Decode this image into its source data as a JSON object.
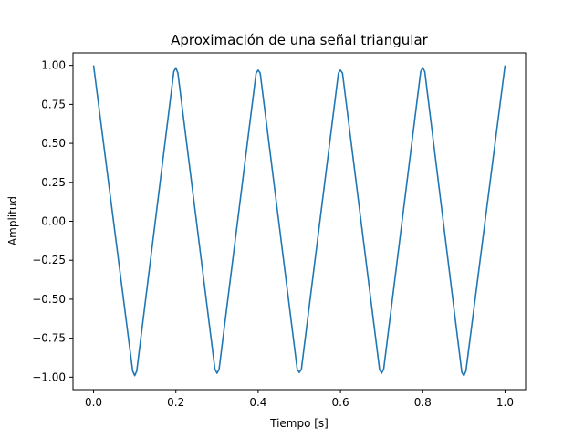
{
  "chart_data": {
    "type": "line",
    "title": "Aproximación de una señal triangular",
    "xlabel": "Tiempo [s]",
    "ylabel": "Amplitud",
    "xlim": [
      -0.05,
      1.05
    ],
    "ylim": [
      -1.08,
      1.08
    ],
    "x_ticks": [
      0.0,
      0.2,
      0.4,
      0.6,
      0.8,
      1.0
    ],
    "x_tick_labels": [
      "0.0",
      "0.2",
      "0.4",
      "0.6",
      "0.8",
      "1.0"
    ],
    "y_ticks": [
      -1.0,
      -0.75,
      -0.5,
      -0.25,
      0.0,
      0.25,
      0.5,
      0.75,
      1.0
    ],
    "y_tick_labels": [
      "−1.00",
      "−0.75",
      "−0.50",
      "−0.25",
      "0.00",
      "0.25",
      "0.50",
      "0.75",
      "1.00"
    ],
    "grid": false,
    "series": [
      {
        "color": "#1f77b4",
        "x": [
          0.0,
          0.095,
          0.1,
          0.105,
          0.195,
          0.2,
          0.205,
          0.295,
          0.3,
          0.305,
          0.395,
          0.4,
          0.405,
          0.495,
          0.5,
          0.505,
          0.595,
          0.6,
          0.605,
          0.695,
          0.7,
          0.705,
          0.795,
          0.8,
          0.805,
          0.895,
          0.9,
          0.905,
          1.0
        ],
        "y": [
          1.0,
          -0.96,
          -0.99,
          -0.96,
          0.96,
          0.985,
          0.95,
          -0.95,
          -0.975,
          -0.95,
          0.95,
          0.97,
          0.95,
          -0.95,
          -0.97,
          -0.95,
          0.95,
          0.97,
          0.95,
          -0.95,
          -0.975,
          -0.95,
          0.96,
          0.985,
          0.96,
          -0.97,
          -0.99,
          -0.96,
          1.0
        ]
      }
    ]
  }
}
